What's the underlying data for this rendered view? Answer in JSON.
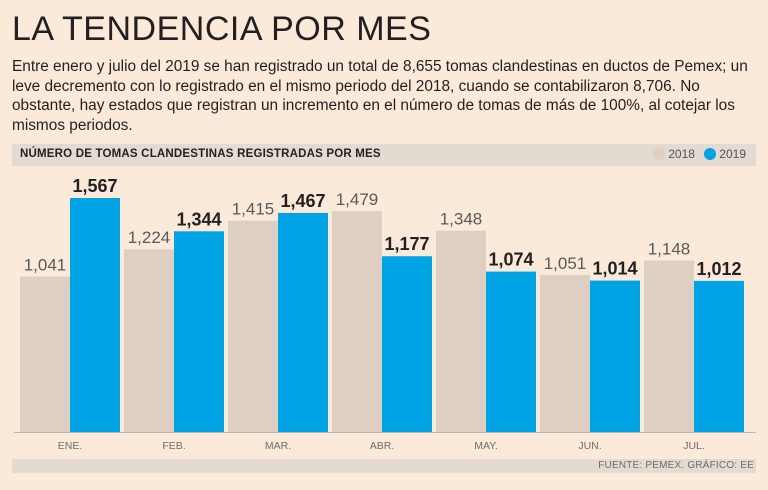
{
  "title": "LA TENDENCIA POR MES",
  "intro": "Entre enero y julio del 2019 se han registrado un total de 8,655 tomas clandestinas en ductos de Pemex; un leve decremento con lo registrado en el mismo periodo del 2018, cuando se contabilizaron 8,706. No obstante, hay estados que registran un incremento en el número de tomas de más de 100%, al cotejar los mismos periodos.",
  "source": "FUENTE: PEMEX. GRÁFICO: EE",
  "colors": {
    "s2018": "#ddd0c3",
    "s2019": "#00a4e4"
  },
  "chart_data": {
    "type": "bar",
    "title": "NÚMERO DE TOMAS CLANDESTINAS REGISTRADAS POR MES",
    "categories": [
      "ENE.",
      "FEB.",
      "MAR.",
      "ABR.",
      "MAY.",
      "JUN.",
      "JUL."
    ],
    "series": [
      {
        "name": "2018",
        "values": [
          1041,
          1224,
          1415,
          1479,
          1348,
          1051,
          1148
        ],
        "labels": [
          "1,041",
          "1,224",
          "1,415",
          "1,479",
          "1,348",
          "1,051",
          "1,148"
        ]
      },
      {
        "name": "2019",
        "values": [
          1567,
          1344,
          1467,
          1177,
          1074,
          1014,
          1012
        ],
        "labels": [
          "1,567",
          "1,344",
          "1,467",
          "1,177",
          "1,074",
          "1,014",
          "1,012"
        ]
      }
    ],
    "xlabel": "",
    "ylabel": "",
    "ylim": [
      0,
      1567
    ],
    "legend": "top-right",
    "grid": false
  }
}
